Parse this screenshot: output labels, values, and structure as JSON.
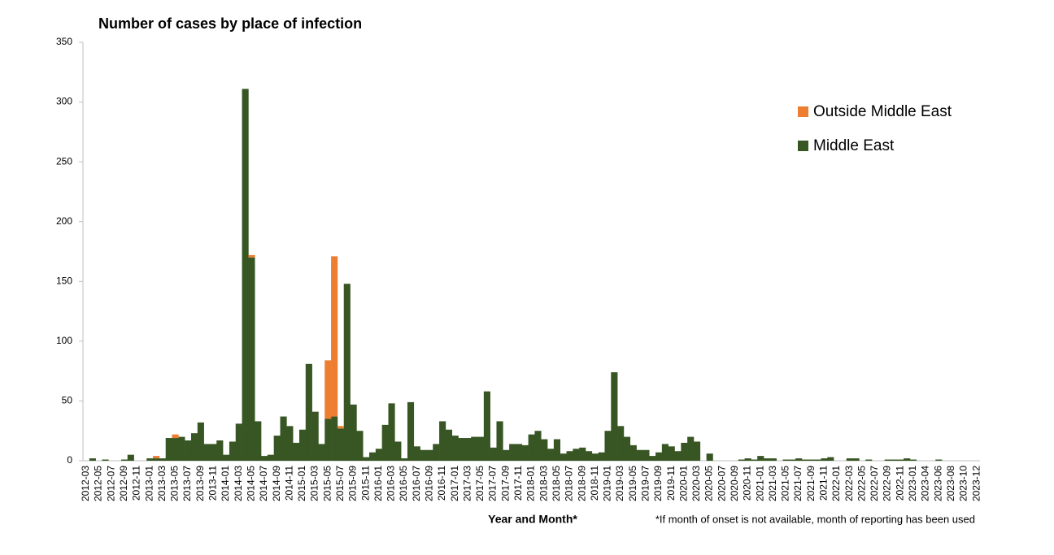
{
  "chart_data": {
    "type": "stacked-bar",
    "title": "Number of cases by place of infection",
    "x_label": "Year and Month*",
    "footnote": "*If month of onset is not available, month of reporting has been used",
    "categories": [
      "2012-03",
      null,
      "2012-05",
      null,
      "2012-07",
      null,
      "2012-09",
      null,
      "2012-11",
      null,
      "2013-01",
      null,
      "2013-03",
      null,
      "2013-05",
      null,
      "2013-07",
      null,
      "2013-09",
      null,
      "2013-11",
      null,
      "2014-01",
      null,
      "2014-03",
      null,
      "2014-05",
      null,
      "2014-07",
      null,
      "2014-09",
      null,
      "2014-11",
      null,
      "2015-01",
      null,
      "2015-03",
      null,
      "2015-05",
      null,
      "2015-07",
      null,
      "2015-09",
      null,
      "2015-11",
      null,
      "2016-01",
      null,
      "2016-03",
      null,
      "2016-05",
      null,
      "2016-07",
      null,
      "2016-09",
      null,
      "2016-11",
      null,
      "2017-01",
      null,
      "2017-03",
      null,
      "2017-05",
      null,
      "2017-07",
      null,
      "2017-09",
      null,
      "2017-11",
      null,
      "2018-01",
      null,
      "2018-03",
      null,
      "2018-05",
      null,
      "2018-07",
      null,
      "2018-09",
      null,
      "2018-11",
      null,
      "2019-01",
      null,
      "2019-03",
      null,
      "2019-05",
      null,
      "2019-07",
      null,
      "2019-09",
      null,
      "2019-11",
      null,
      "2020-01",
      null,
      "2020-03",
      null,
      "2020-05",
      null,
      "2020-07",
      null,
      "2020-09",
      null,
      "2020-11",
      null,
      "2021-01",
      null,
      "2021-03",
      null,
      "2021-05",
      null,
      "2021-07",
      null,
      "2021-09",
      null,
      "2021-11",
      null,
      "2022-01",
      null,
      "2022-03",
      null,
      "2022-05",
      null,
      "2022-07",
      null,
      "2022-09",
      null,
      "2022-11",
      null,
      "2023-01",
      null,
      "2023-04",
      null,
      "2023-06",
      null,
      "2023-08",
      null,
      "2023-10",
      null,
      "2023-12"
    ],
    "series": [
      {
        "name": "Middle East",
        "color": "#375623",
        "values": [
          0,
          2,
          0,
          1,
          0,
          0,
          1,
          5,
          0,
          0,
          2,
          2,
          2,
          19,
          19,
          20,
          17,
          23,
          32,
          14,
          14,
          17,
          5,
          16,
          31,
          311,
          170,
          33,
          4,
          5,
          21,
          37,
          29,
          15,
          26,
          81,
          41,
          14,
          35,
          37,
          27,
          148,
          47,
          25,
          3,
          7,
          10,
          30,
          48,
          16,
          2,
          49,
          12,
          9,
          9,
          14,
          33,
          26,
          21,
          19,
          19,
          20,
          20,
          58,
          11,
          33,
          9,
          14,
          14,
          13,
          22,
          25,
          18,
          10,
          18,
          6,
          8,
          10,
          11,
          8,
          6,
          7,
          25,
          74,
          29,
          20,
          13,
          9,
          9,
          4,
          7,
          14,
          12,
          8,
          15,
          20,
          16,
          0,
          6,
          0,
          0,
          0,
          0,
          1,
          2,
          1,
          4,
          2,
          2,
          0,
          1,
          1,
          2,
          1,
          1,
          1,
          2,
          3,
          0,
          0,
          2,
          2,
          0,
          1,
          0,
          0,
          1,
          1,
          1,
          2,
          1,
          0,
          0,
          0,
          1,
          0,
          0,
          0,
          0,
          0,
          0
        ]
      },
      {
        "name": "Outside Middle East",
        "color": "#ed7d31",
        "values": [
          0,
          0,
          0,
          0,
          0,
          0,
          0,
          0,
          0,
          0,
          0,
          2,
          0,
          0,
          3,
          0,
          0,
          0,
          0,
          0,
          0,
          0,
          0,
          0,
          0,
          0,
          2,
          0,
          0,
          0,
          0,
          0,
          0,
          0,
          0,
          0,
          0,
          0,
          49,
          134,
          2,
          0,
          0,
          0,
          0,
          0,
          0,
          0,
          0,
          0,
          0,
          0,
          0,
          0,
          0,
          0,
          0,
          0,
          0,
          0,
          0,
          0,
          0,
          0,
          0,
          0,
          0,
          0,
          0,
          0,
          0,
          0,
          0,
          0,
          0,
          0,
          0,
          0,
          0,
          0,
          0,
          0,
          0,
          0,
          0,
          0,
          0,
          0,
          0,
          0,
          0,
          0,
          0,
          0,
          0,
          0,
          0,
          0,
          0,
          0,
          0,
          0,
          0,
          0,
          0,
          0,
          0,
          0,
          0,
          0,
          0,
          0,
          0,
          0,
          0,
          0,
          0,
          0,
          0,
          0,
          0,
          0,
          0,
          0,
          0,
          0,
          0,
          0,
          0,
          0,
          0,
          0,
          0,
          0,
          0,
          0,
          0,
          0,
          0,
          0,
          0
        ]
      }
    ],
    "ylim": [
      0,
      350
    ],
    "yticks": [
      0,
      50,
      100,
      150,
      200,
      250,
      300,
      350
    ],
    "grid": false,
    "legend": "upper-right"
  }
}
